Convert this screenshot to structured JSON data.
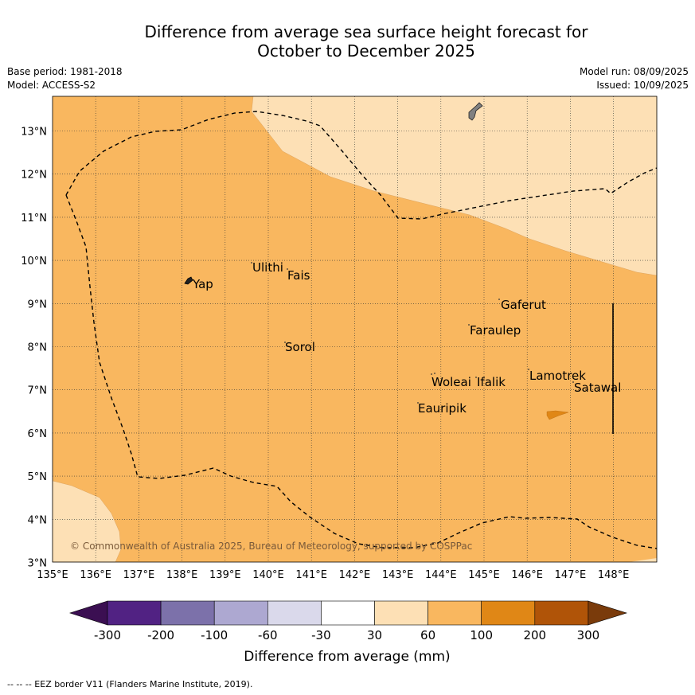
{
  "header": {
    "title_line1": "Difference from average sea surface height forecast for",
    "title_line2": "October to December 2025",
    "base_period": "Base period: 1981-2018",
    "model": "Model: ACCESS-S2",
    "model_run": "Model run: 08/09/2025",
    "issued": "Issued: 10/09/2025"
  },
  "map": {
    "lon_ticks": [
      "135°E",
      "136°E",
      "137°E",
      "138°E",
      "139°E",
      "140°E",
      "141°E",
      "142°E",
      "143°E",
      "144°E",
      "145°E",
      "146°E",
      "147°E",
      "148°E"
    ],
    "lat_ticks": [
      "13°N",
      "12°N",
      "11°N",
      "10°N",
      "9°N",
      "8°N",
      "7°N",
      "6°N",
      "5°N",
      "4°N",
      "3°N"
    ],
    "places": [
      {
        "name": "Yap"
      },
      {
        "name": "Ulithi"
      },
      {
        "name": "Fais"
      },
      {
        "name": "Gaferut"
      },
      {
        "name": "Faraulep"
      },
      {
        "name": "Sorol"
      },
      {
        "name": "Woleai"
      },
      {
        "name": "Ifalik"
      },
      {
        "name": "Lamotrek"
      },
      {
        "name": "Satawal"
      },
      {
        "name": "Eauripik"
      }
    ],
    "copyright": "© Commonwealth of Australia 2025, Bureau of Meteorology, supported by COSPPac",
    "colors": {
      "class_60_100": "#f9b75f",
      "class_30_60": "#fde0b5",
      "class_100_200": "#e08716",
      "land": "#808080"
    }
  },
  "colorbar": {
    "label": "Difference from average (mm)",
    "ticks": [
      "-300",
      "-200",
      "-100",
      "-60",
      "-30",
      "30",
      "60",
      "100",
      "200",
      "300"
    ],
    "colors": [
      "#3b0f52",
      "#512283",
      "#7c71aa",
      "#ada8d1",
      "#dad9eb",
      "#ffffff",
      "#fde0b5",
      "#f9b75f",
      "#e08716",
      "#b05408",
      "#7a3b0b"
    ]
  },
  "footer": {
    "eez_note": "--  --  -- EEZ border V11 (Flanders Marine Institute, 2019)."
  }
}
